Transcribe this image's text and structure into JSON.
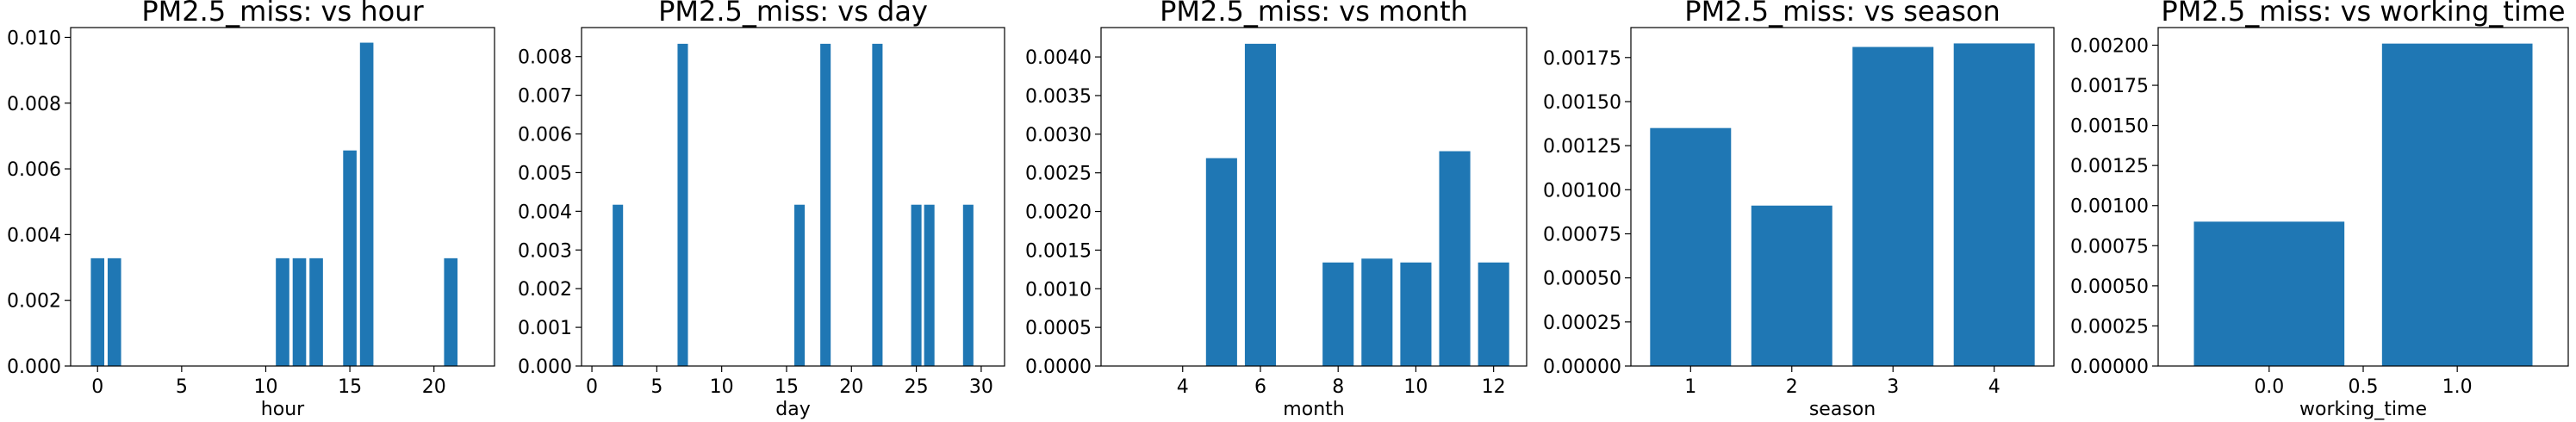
{
  "chart_data": [
    {
      "type": "bar",
      "title": "PM2.5_miss: vs hour",
      "xlabel": "hour",
      "ylabel": "",
      "x": [
        0,
        1,
        11,
        12,
        13,
        15,
        16,
        21
      ],
      "values": [
        0.00328,
        0.00328,
        0.00328,
        0.00328,
        0.00328,
        0.00656,
        0.00984,
        0.00328
      ],
      "xlim": [
        -1.6,
        23.6
      ],
      "ylim": [
        0,
        0.0103
      ],
      "xticks": [
        0,
        5,
        10,
        15,
        20
      ],
      "xtick_labels": [
        "0",
        "5",
        "10",
        "15",
        "20"
      ],
      "yticks": [
        0,
        0.002,
        0.004,
        0.006,
        0.008,
        0.01
      ],
      "ytick_labels": [
        "0.000",
        "0.002",
        "0.004",
        "0.006",
        "0.008",
        "0.010"
      ],
      "bar_width": 0.8,
      "color": "#1f77b4"
    },
    {
      "type": "bar",
      "title": "PM2.5_miss: vs day",
      "xlabel": "day",
      "ylabel": "",
      "x": [
        2,
        7,
        16,
        18,
        22,
        25,
        26,
        29
      ],
      "values": [
        0.00417,
        0.00833,
        0.00417,
        0.00833,
        0.00833,
        0.00417,
        0.00417,
        0.00417
      ],
      "xlim": [
        -0.8,
        31.8
      ],
      "ylim": [
        0,
        0.00875
      ],
      "xticks": [
        0,
        5,
        10,
        15,
        20,
        25,
        30
      ],
      "xtick_labels": [
        "0",
        "5",
        "10",
        "15",
        "20",
        "25",
        "30"
      ],
      "yticks": [
        0,
        0.001,
        0.002,
        0.003,
        0.004,
        0.005,
        0.006,
        0.007,
        0.008
      ],
      "ytick_labels": [
        "0.000",
        "0.001",
        "0.002",
        "0.003",
        "0.004",
        "0.005",
        "0.006",
        "0.007",
        "0.008"
      ],
      "bar_width": 0.8,
      "color": "#1f77b4"
    },
    {
      "type": "bar",
      "title": "PM2.5_miss: vs month",
      "xlabel": "month",
      "ylabel": "",
      "x": [
        5,
        6,
        8,
        9,
        10,
        11,
        12
      ],
      "values": [
        0.00269,
        0.00417,
        0.00134,
        0.00139,
        0.00134,
        0.00278,
        0.00134
      ],
      "xlim": [
        1.9,
        12.85
      ],
      "ylim": [
        0,
        0.00438
      ],
      "xticks": [
        4,
        6,
        8,
        10,
        12
      ],
      "xtick_labels": [
        "4",
        "6",
        "8",
        "10",
        "12"
      ],
      "yticks": [
        0,
        0.0005,
        0.001,
        0.0015,
        0.002,
        0.0025,
        0.003,
        0.0035,
        0.004
      ],
      "ytick_labels": [
        "0.0000",
        "0.0005",
        "0.0010",
        "0.0015",
        "0.0020",
        "0.0025",
        "0.0030",
        "0.0035",
        "0.0040"
      ],
      "bar_width": 0.8,
      "color": "#1f77b4"
    },
    {
      "type": "bar",
      "title": "PM2.5_miss: vs season",
      "xlabel": "season",
      "ylabel": "",
      "x": [
        1,
        2,
        3,
        4
      ],
      "values": [
        0.00135,
        0.00091,
        0.00181,
        0.00183
      ],
      "xlim": [
        0.41,
        4.59
      ],
      "ylim": [
        0,
        0.00192
      ],
      "xticks": [
        1,
        2,
        3,
        4
      ],
      "xtick_labels": [
        "1",
        "2",
        "3",
        "4"
      ],
      "yticks": [
        0,
        0.00025,
        0.0005,
        0.00075,
        0.001,
        0.00125,
        0.0015,
        0.00175
      ],
      "ytick_labels": [
        "0.00000",
        "0.00025",
        "0.00050",
        "0.00075",
        "0.00100",
        "0.00125",
        "0.00150",
        "0.00175"
      ],
      "bar_width": 0.8,
      "color": "#1f77b4"
    },
    {
      "type": "bar",
      "title": "PM2.5_miss: vs working_time",
      "xlabel": "working_time",
      "ylabel": "",
      "x": [
        0.0,
        1.0
      ],
      "values": [
        0.0009,
        0.00201
      ],
      "xlim": [
        -0.59,
        1.59
      ],
      "ylim": [
        0,
        0.00211
      ],
      "xticks": [
        0.0,
        1.0
      ],
      "xtick_labels": [
        "0.0",
        "1.0"
      ],
      "xtick_extra": [
        0.5
      ],
      "xtick_extra_labels": [
        "0.5"
      ],
      "yticks": [
        0,
        0.00025,
        0.0005,
        0.00075,
        0.001,
        0.00125,
        0.0015,
        0.00175,
        0.002
      ],
      "ytick_labels": [
        "0.00000",
        "0.00025",
        "0.00050",
        "0.00075",
        "0.00100",
        "0.00125",
        "0.00150",
        "0.00175",
        "0.00200"
      ],
      "bar_width": 0.8,
      "color": "#1f77b4"
    }
  ]
}
